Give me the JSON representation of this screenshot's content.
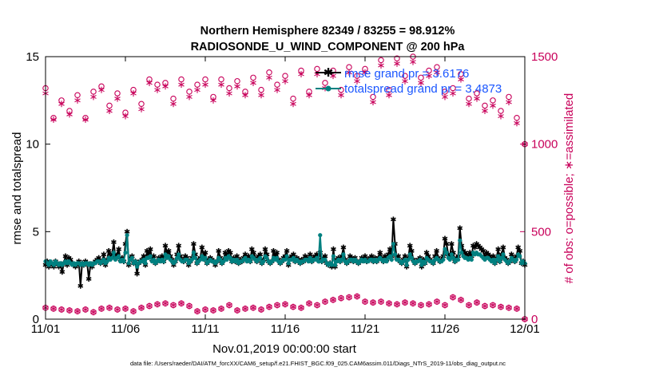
{
  "chart_data": {
    "type": "line",
    "title": "Northern Hemisphere 82349 / 83255 = 98.912%",
    "subtitle": "RADIOSONDE_U_WIND_COMPONENT @ 200 hPa",
    "xlabel": "Nov.01,2019 00:00:00 start",
    "ylabel": "rmse and totalspread",
    "y2label": "# of obs: o=possible; ∗=assimilated",
    "footer": "data file: /Users/raeder/DAI/ATM_forcXX/CAM6_setup/f.e21.FHIST_BGC.f09_025.CAM6assim.011/Diags_NTrS_2019-11/obs_diag_output.nc",
    "xticks": [
      "11/01",
      "11/06",
      "11/11",
      "11/16",
      "11/21",
      "11/26",
      "12/01"
    ],
    "xlim": [
      0,
      30
    ],
    "ylim": [
      0,
      15
    ],
    "yticks": [
      "0",
      "5",
      "10",
      "15"
    ],
    "y2lim": [
      0,
      1500
    ],
    "y2ticks": [
      "0",
      "500",
      "1000",
      "1500"
    ],
    "colors": {
      "rmse": "#000000",
      "spread": "#008080",
      "obs": "#c8005a",
      "legend": "#1a56ff"
    },
    "legend": [
      {
        "series": "rmse",
        "label": "rmse grand pr = 3.6176"
      },
      {
        "series": "spread",
        "label": "totalspread grand pr = 3.4873"
      }
    ],
    "series": [
      {
        "name": "rmse",
        "values": [
          3.1,
          3.3,
          3.0,
          3.2,
          3.1,
          3.0,
          3.3,
          3.2,
          3.0,
          3.1,
          2.7,
          3.2,
          3.6,
          3.1,
          3.5,
          3.4,
          3.2,
          3.1,
          3.0,
          3.1,
          3.3,
          1.9,
          3.2,
          3.1,
          3.3,
          3.2,
          2.3,
          3.1,
          3.0,
          3.2,
          3.3,
          3.4,
          3.5,
          3.2,
          3.3,
          3.7,
          3.1,
          3.4,
          3.9,
          3.5,
          3.7,
          4.4,
          3.5,
          3.7,
          4.0,
          3.4,
          3.5,
          3.3,
          4.3,
          5.0,
          3.1,
          3.5,
          3.6,
          3.2,
          3.3,
          2.6,
          3.2,
          3.3,
          3.4,
          3.6,
          3.1,
          3.9,
          3.7,
          4.0,
          3.4,
          3.6,
          3.2,
          3.3,
          3.5,
          3.4,
          3.6,
          3.3,
          4.2,
          3.8,
          3.9,
          3.6,
          3.4,
          3.1,
          3.3,
          3.7,
          4.2,
          3.6,
          3.4,
          3.3,
          3.6,
          3.5,
          3.1,
          3.3,
          3.5,
          4.3,
          3.7,
          3.2,
          3.4,
          3.5,
          4.1,
          3.6,
          3.8,
          3.2,
          3.4,
          3.5,
          3.4,
          3.3,
          3.1,
          3.3,
          3.9,
          3.5,
          3.2,
          3.4,
          3.8,
          3.6,
          3.9,
          3.8,
          3.3,
          3.5,
          3.3,
          3.6,
          3.2,
          3.4,
          3.3,
          3.5,
          3.7,
          3.4,
          3.6,
          3.3,
          4.0,
          3.8,
          3.5,
          3.3,
          3.6,
          3.7,
          3.2,
          3.4,
          4.0,
          3.7,
          3.3,
          3.2,
          3.3,
          3.9,
          3.6,
          3.8,
          3.4,
          3.2,
          3.3,
          3.5,
          3.6,
          3.9,
          3.1,
          3.5,
          3.6,
          3.7,
          3.3,
          3.5,
          3.4,
          3.2,
          3.4,
          3.3,
          3.6,
          3.5,
          3.4,
          3.7,
          3.3,
          3.5,
          3.6,
          3.7,
          3.4,
          3.8,
          3.3,
          3.5,
          3.6,
          3.2,
          3.1,
          3.2,
          3.0,
          4.0,
          3.0,
          3.4,
          3.5,
          3.3,
          3.6,
          4.1,
          3.4,
          3.2,
          3.3,
          3.6,
          3.5,
          3.3,
          3.5,
          3.3,
          3.2,
          3.3,
          3.5,
          3.4,
          3.6,
          3.3,
          3.4,
          3.5,
          3.6,
          3.3,
          3.5,
          3.3,
          3.5,
          3.8,
          3.5,
          3.3,
          3.6,
          3.4,
          3.7,
          4.0,
          3.6,
          5.7,
          4.3,
          3.5,
          3.6,
          3.3,
          3.2,
          3.4,
          3.6,
          3.0,
          3.5,
          4.2,
          3.9,
          3.4,
          3.2,
          3.3,
          3.4,
          3.5,
          3.0,
          3.4,
          3.2,
          3.8,
          3.6,
          3.4,
          3.3,
          3.2,
          3.6,
          3.9,
          3.5,
          3.3,
          3.4,
          3.6,
          4.6,
          4.3,
          3.7,
          3.6,
          4.3,
          3.8,
          3.3,
          3.5,
          3.6,
          5.2,
          4.2,
          3.9,
          3.8,
          3.7,
          3.5,
          3.8,
          3.6,
          4.2,
          4.1,
          4.3,
          4.2,
          4.1,
          4.0,
          3.9,
          3.5,
          3.8,
          3.7,
          3.6,
          3.4,
          3.6,
          3.2,
          3.5,
          4.0,
          3.3,
          3.7,
          4.1,
          3.5,
          3.4,
          3.2,
          3.3,
          3.7,
          3.5,
          3.3,
          3.6,
          4.1,
          3.9,
          3.2,
          3.3,
          3.1
        ]
      },
      {
        "name": "spread",
        "values": [
          3.3,
          3.2,
          3.1,
          3.3,
          3.2,
          3.1,
          3.3,
          3.2,
          3.1,
          3.2,
          3.1,
          3.2,
          3.3,
          3.2,
          3.3,
          3.2,
          3.1,
          3.2,
          3.1,
          3.2,
          3.2,
          3.1,
          3.2,
          3.1,
          3.2,
          3.2,
          3.1,
          3.2,
          3.1,
          3.2,
          3.2,
          3.3,
          3.3,
          3.2,
          3.3,
          3.4,
          3.2,
          3.3,
          3.5,
          3.4,
          3.5,
          3.8,
          3.4,
          3.5,
          3.6,
          3.3,
          3.4,
          3.3,
          3.8,
          4.8,
          3.2,
          3.4,
          3.5,
          3.2,
          3.3,
          3.0,
          3.2,
          3.3,
          3.3,
          3.4,
          3.2,
          3.5,
          3.5,
          3.6,
          3.3,
          3.4,
          3.2,
          3.3,
          3.4,
          3.3,
          3.4,
          3.3,
          3.7,
          3.5,
          3.6,
          3.4,
          3.3,
          3.2,
          3.3,
          3.5,
          3.7,
          3.4,
          3.3,
          3.3,
          3.4,
          3.4,
          3.2,
          3.3,
          3.4,
          3.8,
          3.5,
          3.2,
          3.3,
          3.4,
          3.6,
          3.4,
          3.5,
          3.2,
          3.3,
          3.4,
          3.3,
          3.3,
          3.2,
          3.3,
          3.5,
          3.4,
          3.2,
          3.3,
          3.5,
          3.4,
          3.6,
          3.5,
          3.3,
          3.4,
          3.3,
          3.4,
          3.2,
          3.3,
          3.3,
          3.4,
          3.5,
          3.3,
          3.4,
          3.3,
          3.6,
          3.5,
          3.4,
          3.3,
          3.4,
          3.5,
          3.2,
          3.3,
          3.6,
          3.5,
          3.3,
          3.2,
          3.3,
          3.5,
          3.4,
          3.5,
          3.3,
          3.2,
          3.3,
          3.4,
          3.4,
          3.6,
          3.2,
          3.4,
          3.4,
          3.5,
          3.3,
          3.4,
          3.3,
          3.2,
          3.3,
          3.3,
          3.4,
          3.4,
          3.3,
          3.5,
          3.3,
          3.4,
          3.4,
          3.5,
          3.3,
          4.8,
          3.3,
          3.4,
          3.4,
          3.2,
          3.1,
          3.2,
          3.1,
          3.6,
          3.1,
          3.3,
          3.4,
          3.3,
          3.4,
          3.7,
          3.3,
          3.2,
          3.3,
          3.4,
          3.4,
          3.3,
          3.4,
          3.3,
          3.2,
          3.3,
          3.4,
          3.3,
          3.4,
          3.3,
          3.3,
          3.4,
          3.4,
          3.3,
          3.4,
          3.3,
          3.4,
          3.5,
          3.4,
          3.3,
          3.4,
          3.3,
          3.5,
          3.6,
          3.4,
          4.3,
          3.7,
          3.4,
          3.4,
          3.3,
          3.2,
          3.3,
          3.4,
          3.1,
          3.4,
          3.7,
          3.5,
          3.3,
          3.2,
          3.3,
          3.3,
          3.4,
          3.1,
          3.3,
          3.2,
          3.5,
          3.4,
          3.3,
          3.3,
          3.2,
          3.4,
          3.5,
          3.4,
          3.3,
          3.3,
          3.4,
          4.0,
          3.8,
          3.5,
          3.4,
          3.7,
          3.5,
          3.3,
          3.4,
          3.4,
          4.5,
          3.8,
          3.6,
          3.5,
          3.5,
          3.4,
          3.5,
          3.4,
          3.8,
          3.7,
          3.8,
          3.7,
          3.7,
          3.6,
          3.5,
          3.4,
          3.5,
          3.5,
          3.4,
          3.3,
          3.4,
          3.2,
          3.4,
          3.6,
          3.3,
          3.5,
          3.7,
          3.4,
          3.3,
          3.2,
          3.3,
          3.5,
          3.4,
          3.3,
          3.4,
          3.7,
          3.6,
          3.2,
          3.3,
          3.2
        ]
      },
      {
        "name": "obs_possible",
        "x": [
          0,
          0.5,
          1,
          1.5,
          2,
          2.5,
          3,
          3.5,
          4,
          4.5,
          5,
          5.5,
          6,
          6.5,
          7,
          7.5,
          8,
          8.5,
          9,
          9.5,
          10,
          10.5,
          11,
          11.5,
          12,
          12.5,
          13,
          13.5,
          14,
          14.5,
          15,
          15.5,
          16,
          16.5,
          17,
          17.5,
          18,
          18.5,
          19,
          19.5,
          20,
          20.5,
          21,
          21.5,
          22,
          22.5,
          23,
          23.5,
          24,
          24.5,
          25,
          25.5,
          26,
          26.5,
          27,
          27.5,
          28,
          28.5,
          29,
          29.5,
          30
        ],
        "values": [
          1320,
          1150,
          1250,
          1190,
          1280,
          1150,
          1300,
          1330,
          1220,
          1290,
          1180,
          1310,
          1230,
          1370,
          1340,
          1350,
          1260,
          1370,
          1300,
          1340,
          1370,
          1270,
          1370,
          1320,
          1360,
          1300,
          1380,
          1310,
          1410,
          1340,
          1390,
          1260,
          1420,
          1300,
          1430,
          1350,
          1420,
          1310,
          1440,
          1390,
          1430,
          1270,
          1480,
          1310,
          1490,
          1390,
          1500,
          1380,
          1420,
          1440,
          1300,
          1320,
          1400,
          1260,
          1290,
          1220,
          1250,
          1190,
          1270,
          1150,
          1000
        ],
        "marker": "o"
      },
      {
        "name": "obs_assimilated",
        "x": [
          0,
          0.5,
          1,
          1.5,
          2,
          2.5,
          3,
          3.5,
          4,
          4.5,
          5,
          5.5,
          6,
          6.5,
          7,
          7.5,
          8,
          8.5,
          9,
          9.5,
          10,
          10.5,
          11,
          11.5,
          12,
          12.5,
          13,
          13.5,
          14,
          14.5,
          15,
          15.5,
          16,
          16.5,
          17,
          17.5,
          18,
          18.5,
          19,
          19.5,
          20,
          20.5,
          21,
          21.5,
          22,
          22.5,
          23,
          23.5,
          24,
          24.5,
          25,
          25.5,
          26,
          26.5,
          27,
          27.5,
          28,
          28.5,
          29,
          29.5,
          30
        ],
        "values": [
          1290,
          1140,
          1230,
          1170,
          1250,
          1140,
          1270,
          1310,
          1190,
          1260,
          1160,
          1290,
          1200,
          1350,
          1310,
          1330,
          1230,
          1340,
          1270,
          1310,
          1340,
          1250,
          1340,
          1290,
          1330,
          1280,
          1350,
          1280,
          1380,
          1310,
          1360,
          1230,
          1400,
          1280,
          1400,
          1320,
          1390,
          1280,
          1410,
          1360,
          1410,
          1240,
          1450,
          1280,
          1460,
          1360,
          1470,
          1350,
          1390,
          1410,
          1270,
          1290,
          1370,
          1230,
          1260,
          1190,
          1220,
          1160,
          1240,
          1120,
          1000
        ],
        "marker": "*"
      },
      {
        "name": "obs_possible_low",
        "x": [
          0,
          0.5,
          1,
          1.5,
          2,
          2.5,
          3,
          3.5,
          4,
          4.5,
          5,
          5.5,
          6,
          6.5,
          7,
          7.5,
          8,
          8.5,
          9,
          9.5,
          10,
          10.5,
          11,
          11.5,
          12,
          12.5,
          13,
          13.5,
          14,
          14.5,
          15,
          15.5,
          16,
          16.5,
          17,
          17.5,
          18,
          18.5,
          19,
          19.5,
          20,
          20.5,
          21,
          21.5,
          22,
          22.5,
          23,
          23.5,
          24,
          24.5,
          25,
          25.5,
          26,
          26.5,
          27,
          27.5,
          28,
          28.5,
          29,
          29.5,
          30
        ],
        "values": [
          65,
          60,
          55,
          50,
          45,
          55,
          40,
          60,
          65,
          55,
          60,
          45,
          65,
          75,
          85,
          90,
          80,
          90,
          75,
          45,
          55,
          50,
          60,
          80,
          50,
          60,
          65,
          55,
          70,
          80,
          85,
          70,
          65,
          90,
          80,
          100,
          110,
          120,
          125,
          130,
          100,
          95,
          100,
          90,
          85,
          95,
          90,
          80,
          85,
          100,
          80,
          125,
          110,
          80,
          95,
          75,
          80,
          70,
          65,
          60,
          0
        ],
        "marker": "o*"
      }
    ]
  }
}
